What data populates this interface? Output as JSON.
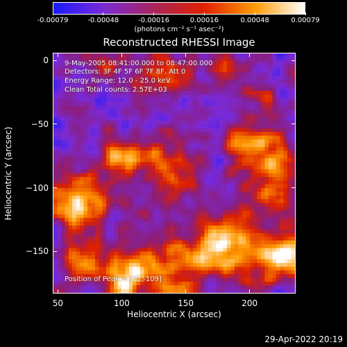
{
  "colorbar": {
    "ticks": [
      "-0.00079",
      "-0.00048",
      "-0.00016",
      "0.00016",
      "0.00048",
      "0.00079"
    ],
    "units": "(photons cm⁻² s⁻¹ asec⁻²)",
    "colors": [
      "#1a1aff",
      "#7a2ad6",
      "#a8245a",
      "#e02000",
      "#ff9a00",
      "#ffffff"
    ]
  },
  "annotations": {
    "time_range": "9-May-2005 08:41:00.000 to 08:47:00.000",
    "detectors": "Detectors: 3F 4F 5F 6F 7F 8F, Att 0",
    "energy": "Energy Range: 12.0 - 25.0 keV",
    "clean": "Clean     Total counts: 2.57E+03",
    "peak": "Position of Peak = [73,-109]"
  },
  "timestamp": "29-Apr-2022 20:19",
  "chart_data": {
    "type": "heatmap",
    "title": "Reconstructed RHESSI Image",
    "xlabel": "Heliocentric X (arcsec)",
    "ylabel": "Heliocentric Y (arcsec)",
    "xlim": [
      46,
      236
    ],
    "ylim": [
      -183,
      6
    ],
    "x_ticks": [
      "50",
      "100",
      "150",
      "200"
    ],
    "y_ticks": [
      "0",
      "−50",
      "−100",
      "−150"
    ],
    "color_range": [
      -0.00079,
      0.00079
    ],
    "peak": [
      73,
      -109
    ]
  }
}
